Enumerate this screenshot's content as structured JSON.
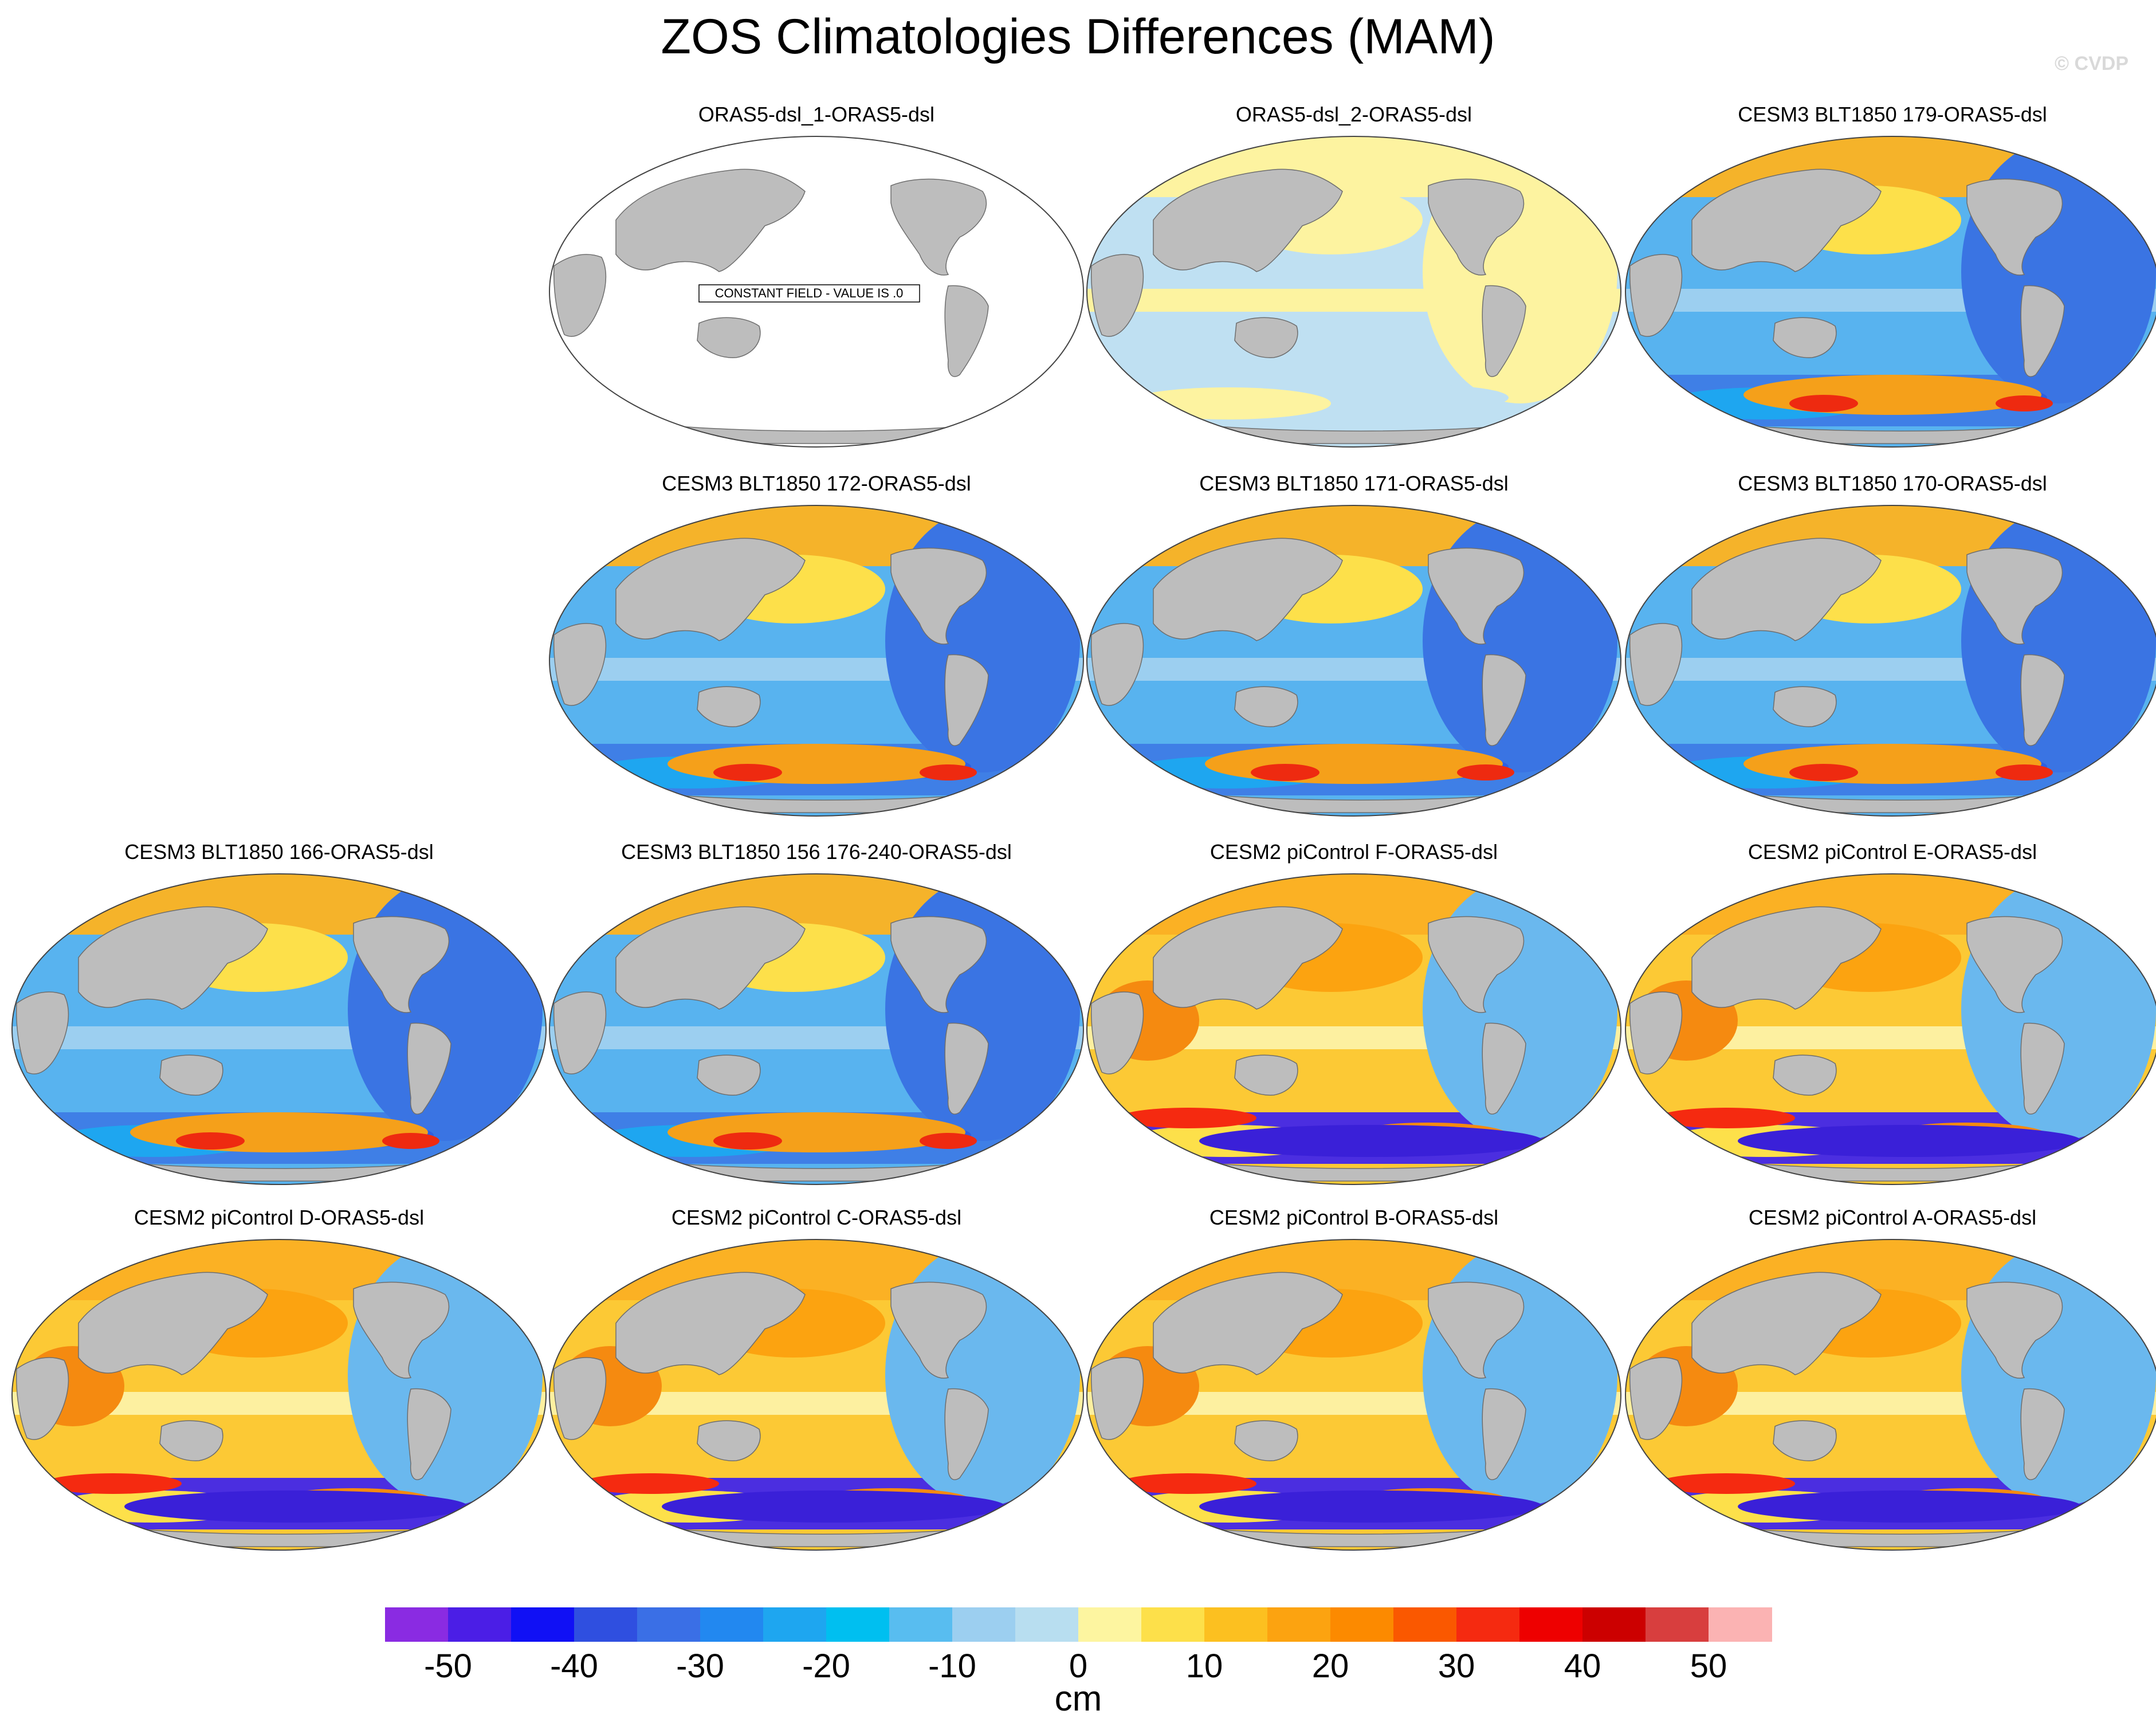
{
  "title": "ZOS Climatologies Differences (MAM)",
  "watermark": "© CVDP",
  "constant_note": "CONSTANT FIELD - VALUE IS .0",
  "panels": [
    {
      "title": "ORAS5-dsl_1-ORAS5-dsl",
      "pattern": "constant"
    },
    {
      "title": "ORAS5-dsl_2-ORAS5-dsl",
      "pattern": "near-zero"
    },
    {
      "title": "CESM3 BLT1850 179-ORAS5-dsl",
      "pattern": "cesm3"
    },
    {
      "title": "CESM3 BLT1850 172-ORAS5-dsl",
      "pattern": "cesm3"
    },
    {
      "title": "CESM3 BLT1850 171-ORAS5-dsl",
      "pattern": "cesm3"
    },
    {
      "title": "CESM3 BLT1850 170-ORAS5-dsl",
      "pattern": "cesm3"
    },
    {
      "title": "CESM3 BLT1850 166-ORAS5-dsl",
      "pattern": "cesm3"
    },
    {
      "title": "CESM3 BLT1850 156 176-240-ORAS5-dsl",
      "pattern": "cesm3"
    },
    {
      "title": "CESM2 piControl F-ORAS5-dsl",
      "pattern": "cesm2"
    },
    {
      "title": "CESM2 piControl E-ORAS5-dsl",
      "pattern": "cesm2"
    },
    {
      "title": "CESM2 piControl D-ORAS5-dsl",
      "pattern": "cesm2"
    },
    {
      "title": "CESM2 piControl C-ORAS5-dsl",
      "pattern": "cesm2"
    },
    {
      "title": "CESM2 piControl B-ORAS5-dsl",
      "pattern": "cesm2"
    },
    {
      "title": "CESM2 piControl A-ORAS5-dsl",
      "pattern": "cesm2"
    }
  ],
  "colorbar": {
    "units": "cm",
    "colors": [
      "#8a2be2",
      "#4b1ee6",
      "#1010f5",
      "#2f4fe0",
      "#3a6fe6",
      "#2288f0",
      "#1ea6f0",
      "#00bff0",
      "#58bdf0",
      "#9ccff0",
      "#b8def0",
      "#fdf5a0",
      "#fde04a",
      "#fcc020",
      "#fca310",
      "#fc8a00",
      "#fa5800",
      "#f52a10",
      "#ee0000",
      "#cc0000",
      "#d83e3e",
      "#fbb3b3"
    ],
    "tick_labels": [
      "-50",
      "-40",
      "-30",
      "-20",
      "-10",
      "0",
      "10",
      "20",
      "30",
      "40",
      "50"
    ]
  }
}
